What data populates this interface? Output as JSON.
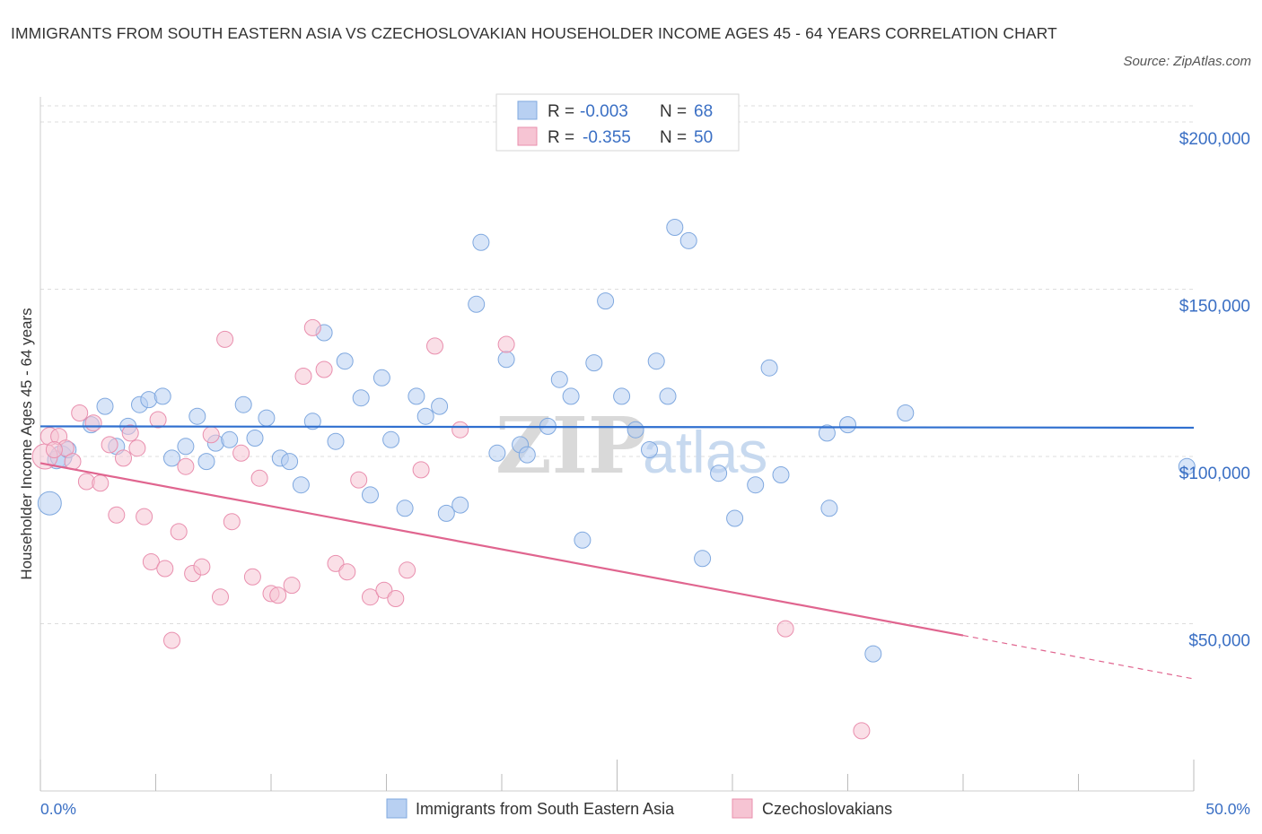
{
  "title": "IMMIGRANTS FROM SOUTH EASTERN ASIA VS CZECHOSLOVAKIAN HOUSEHOLDER INCOME AGES 45 - 64 YEARS CORRELATION CHART",
  "source": "Source: ZipAtlas.com",
  "watermark": {
    "zip": "ZIP",
    "atlas": "atlas"
  },
  "colors": {
    "blue_fill": "#b8d0f2",
    "blue_stroke": "#7fa8df",
    "blue_line": "#2f6fcf",
    "pink_fill": "#f6c4d3",
    "pink_stroke": "#e98fae",
    "pink_line": "#e0658f",
    "grid": "#dddddd",
    "axis_text": "#3a6fc4"
  },
  "stats_box": {
    "rows": [
      {
        "r_label": "R =",
        "r_value": "-0.003",
        "n_label": "N =",
        "n_value": "68",
        "color": "blue"
      },
      {
        "r_label": "R =",
        "r_value": "-0.355",
        "n_label": "N =",
        "n_value": "50",
        "color": "pink"
      }
    ]
  },
  "chart_data": {
    "type": "scatter",
    "title": "IMMIGRANTS FROM SOUTH EASTERN ASIA VS CZECHOSLOVAKIAN HOUSEHOLDER INCOME AGES 45 - 64 YEARS CORRELATION CHART",
    "xlabel": "",
    "ylabel": "Householder Income Ages 45 - 64 years",
    "xlim": [
      0,
      50
    ],
    "ylim": [
      0,
      200000
    ],
    "x_tick_labels": [
      "0.0%",
      "50.0%"
    ],
    "y_ticks": [
      {
        "value": 50000,
        "label": "$50,000"
      },
      {
        "value": 100000,
        "label": "$100,000"
      },
      {
        "value": 150000,
        "label": "$150,000"
      },
      {
        "value": 200000,
        "label": "$200,000"
      }
    ],
    "grid": true,
    "legend_position": "bottom",
    "series": [
      {
        "name": "Immigrants from South Eastern Asia",
        "color": "blue",
        "trend": {
          "x": [
            0,
            50
          ],
          "y": [
            109000,
            108600
          ]
        },
        "points": [
          [
            0.4,
            86000,
            13
          ],
          [
            0.7,
            99000,
            10
          ],
          [
            0.9,
            100000,
            12
          ],
          [
            1.2,
            102000,
            9
          ],
          [
            2.2,
            109500,
            9
          ],
          [
            2.8,
            115000,
            9
          ],
          [
            3.3,
            103000,
            9
          ],
          [
            3.8,
            109000,
            9
          ],
          [
            4.3,
            115500,
            9
          ],
          [
            4.7,
            117000,
            9
          ],
          [
            5.3,
            118000,
            9
          ],
          [
            5.7,
            99500,
            9
          ],
          [
            6.3,
            103000,
            9
          ],
          [
            6.8,
            112000,
            9
          ],
          [
            7.2,
            98500,
            9
          ],
          [
            7.6,
            104000,
            9
          ],
          [
            8.2,
            105000,
            9
          ],
          [
            8.8,
            115500,
            9
          ],
          [
            9.3,
            105500,
            9
          ],
          [
            9.8,
            111500,
            9
          ],
          [
            10.4,
            99500,
            9
          ],
          [
            10.8,
            98500,
            9
          ],
          [
            11.3,
            91500,
            9
          ],
          [
            11.8,
            110500,
            9
          ],
          [
            12.3,
            137000,
            9
          ],
          [
            12.8,
            104500,
            9
          ],
          [
            13.2,
            128500,
            9
          ],
          [
            13.9,
            117500,
            9
          ],
          [
            14.3,
            88500,
            9
          ],
          [
            14.8,
            123500,
            9
          ],
          [
            15.2,
            105000,
            9
          ],
          [
            15.8,
            84500,
            9
          ],
          [
            16.3,
            118000,
            9
          ],
          [
            16.7,
            112000,
            9
          ],
          [
            17.3,
            115000,
            9
          ],
          [
            17.6,
            83000,
            9
          ],
          [
            18.2,
            85500,
            9
          ],
          [
            18.9,
            145500,
            9
          ],
          [
            19.1,
            164000,
            9
          ],
          [
            19.8,
            101000,
            9
          ],
          [
            20.2,
            129000,
            9
          ],
          [
            20.8,
            103500,
            9
          ],
          [
            21.1,
            100500,
            9
          ],
          [
            22.0,
            109000,
            9
          ],
          [
            22.5,
            123000,
            9
          ],
          [
            23.0,
            118000,
            9
          ],
          [
            23.5,
            75000,
            9
          ],
          [
            24.0,
            128000,
            9
          ],
          [
            24.5,
            146500,
            9
          ],
          [
            25.2,
            118000,
            9
          ],
          [
            25.8,
            108000,
            9
          ],
          [
            26.4,
            102000,
            9
          ],
          [
            26.7,
            128500,
            9
          ],
          [
            27.2,
            118000,
            9
          ],
          [
            27.5,
            168500,
            9
          ],
          [
            28.1,
            164500,
            9
          ],
          [
            28.7,
            69500,
            9
          ],
          [
            29.4,
            95000,
            9
          ],
          [
            30.1,
            81500,
            9
          ],
          [
            31.0,
            91500,
            9
          ],
          [
            31.6,
            126500,
            9
          ],
          [
            32.1,
            94500,
            9
          ],
          [
            34.1,
            107000,
            9
          ],
          [
            34.2,
            84500,
            9
          ],
          [
            35.0,
            109500,
            9
          ],
          [
            36.1,
            41000,
            9
          ],
          [
            37.5,
            113000,
            9
          ],
          [
            49.7,
            97000,
            9
          ]
        ]
      },
      {
        "name": "Czechoslovakians",
        "color": "pink",
        "trend": {
          "x": [
            0,
            40
          ],
          "y": [
            98000,
            46500
          ],
          "dashed_to": [
            50,
            33500
          ]
        },
        "points": [
          [
            0.2,
            100000,
            14
          ],
          [
            0.4,
            106000,
            10
          ],
          [
            0.8,
            106000,
            9
          ],
          [
            1.1,
            102500,
            9
          ],
          [
            1.4,
            98500,
            9
          ],
          [
            1.7,
            113000,
            9
          ],
          [
            2.0,
            92500,
            9
          ],
          [
            2.3,
            110000,
            9
          ],
          [
            2.6,
            92000,
            9
          ],
          [
            3.0,
            103500,
            9
          ],
          [
            3.3,
            82500,
            9
          ],
          [
            3.6,
            99500,
            9
          ],
          [
            3.9,
            107000,
            9
          ],
          [
            4.2,
            102500,
            9
          ],
          [
            4.5,
            82000,
            9
          ],
          [
            4.8,
            68500,
            9
          ],
          [
            5.1,
            111000,
            9
          ],
          [
            5.4,
            66500,
            9
          ],
          [
            5.7,
            45000,
            9
          ],
          [
            6.0,
            77500,
            9
          ],
          [
            6.3,
            97000,
            9
          ],
          [
            6.6,
            65000,
            9
          ],
          [
            7.0,
            67000,
            9
          ],
          [
            7.4,
            106500,
            9
          ],
          [
            7.8,
            58000,
            9
          ],
          [
            8.0,
            135000,
            9
          ],
          [
            8.3,
            80500,
            9
          ],
          [
            8.7,
            101000,
            9
          ],
          [
            9.2,
            64000,
            9
          ],
          [
            9.5,
            93500,
            9
          ],
          [
            10.0,
            59000,
            9
          ],
          [
            10.3,
            58500,
            9
          ],
          [
            10.9,
            61500,
            9
          ],
          [
            11.4,
            124000,
            9
          ],
          [
            11.8,
            138500,
            9
          ],
          [
            12.3,
            126000,
            9
          ],
          [
            12.8,
            68000,
            9
          ],
          [
            13.3,
            65500,
            9
          ],
          [
            13.8,
            93000,
            9
          ],
          [
            14.3,
            58000,
            9
          ],
          [
            14.9,
            60000,
            9
          ],
          [
            15.4,
            57500,
            9
          ],
          [
            15.9,
            66000,
            9
          ],
          [
            16.5,
            96000,
            9
          ],
          [
            17.1,
            133000,
            9
          ],
          [
            18.2,
            108000,
            9
          ],
          [
            20.2,
            133500,
            9
          ],
          [
            32.3,
            48500,
            9
          ],
          [
            35.6,
            18000,
            9
          ],
          [
            0.6,
            102000,
            9
          ]
        ]
      }
    ]
  },
  "legend": {
    "items": [
      {
        "label": "Immigrants from South Eastern Asia",
        "color": "blue"
      },
      {
        "label": "Czechoslovakians",
        "color": "pink"
      }
    ]
  }
}
